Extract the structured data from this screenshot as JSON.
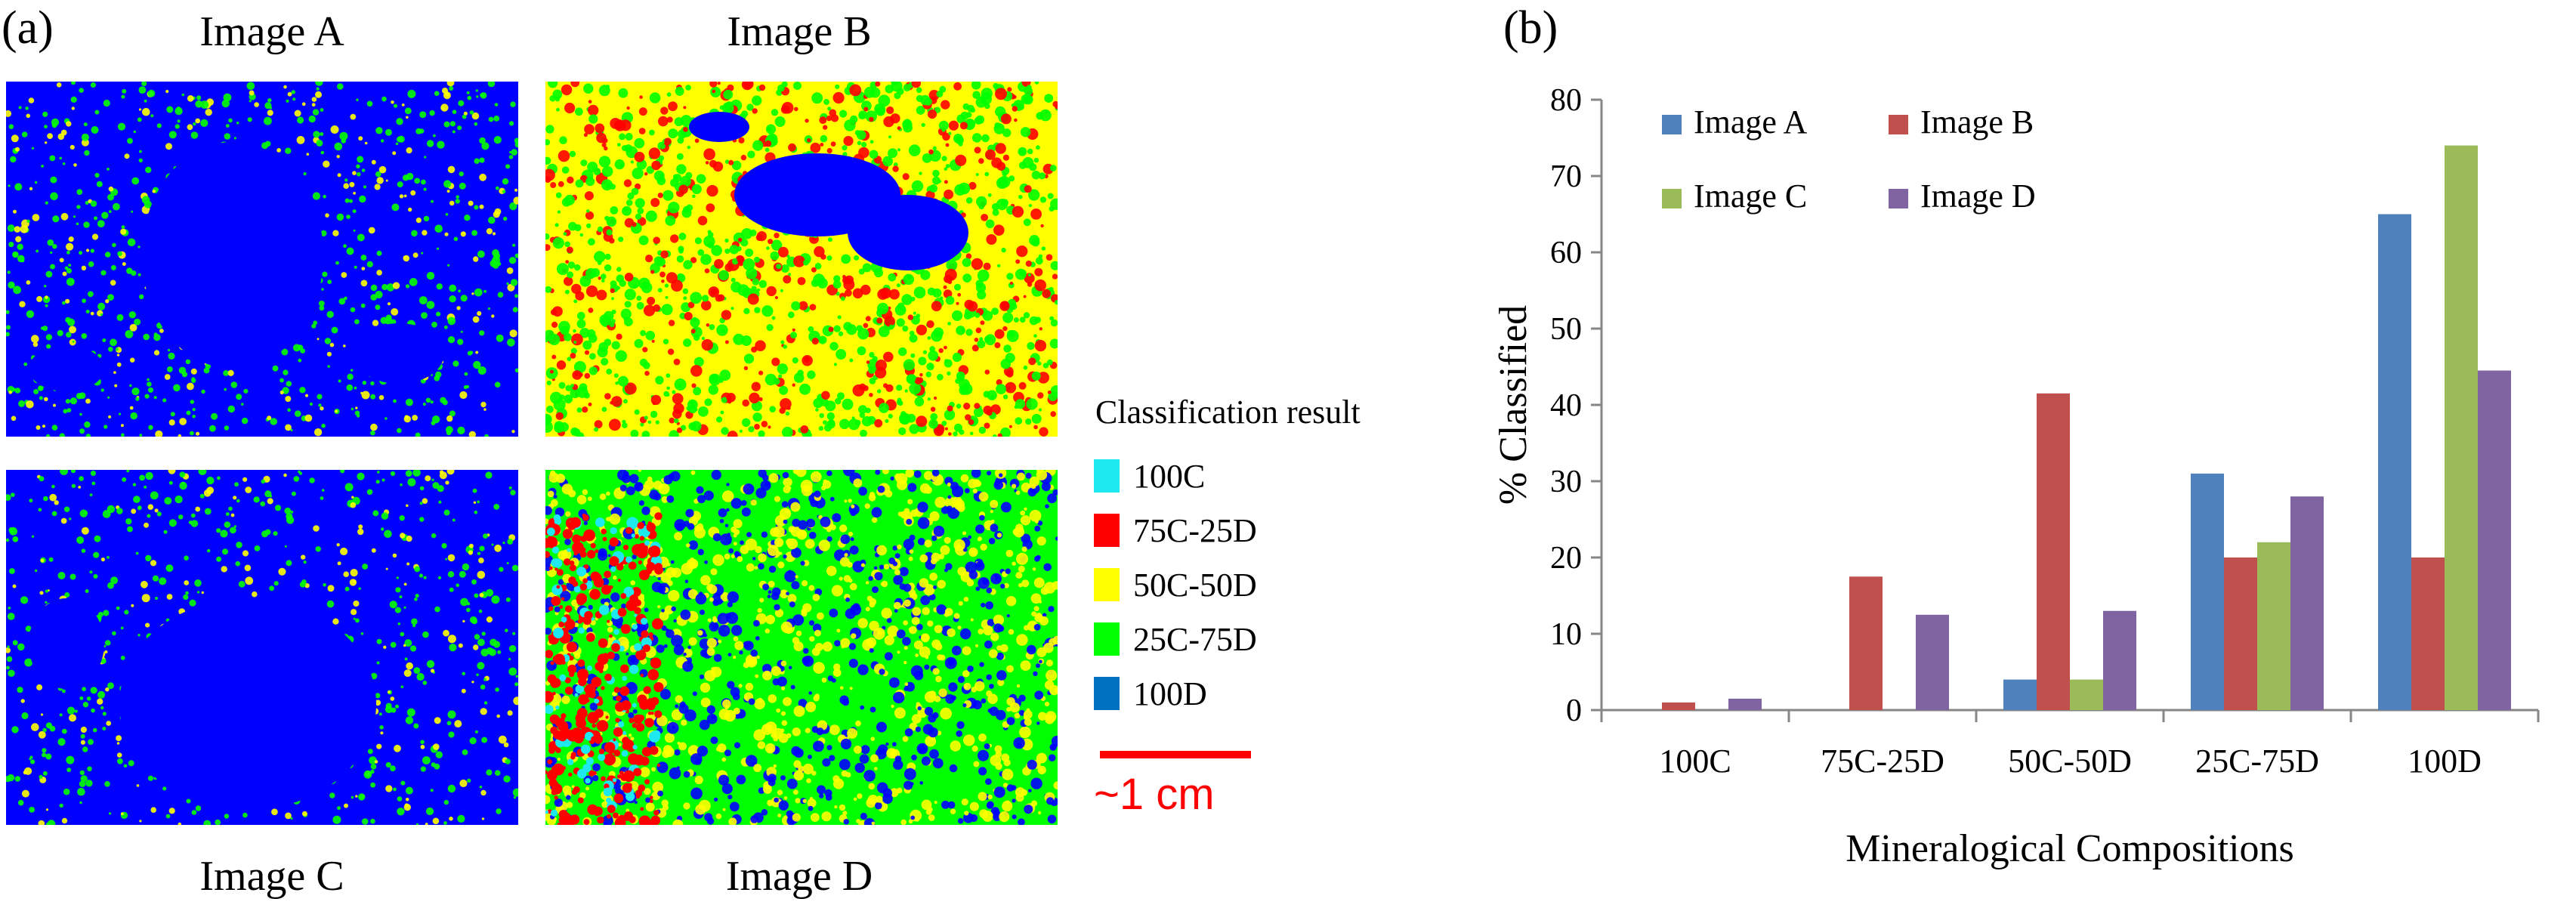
{
  "panel_a_label": "(a)",
  "panel_b_label": "(b)",
  "images": {
    "a": "Image A",
    "b": "Image B",
    "c": "Image C",
    "d": "Image D"
  },
  "classification_legend": {
    "title": "Classification result",
    "items": [
      {
        "label": "100C",
        "color": "#1ee8f0"
      },
      {
        "label": "75C-25D",
        "color": "#ff0000"
      },
      {
        "label": "50C-50D",
        "color": "#ffff00"
      },
      {
        "label": "25C-75D",
        "color": "#00ff00"
      },
      {
        "label": "100D",
        "color": "#0070c0"
      }
    ]
  },
  "scale_bar": {
    "label": "~1 cm",
    "color": "#ff0000"
  },
  "map_colors": {
    "blue": "#0000ff",
    "green": "#00ff00",
    "yellow": "#ffff00",
    "red": "#ff0000",
    "cyan": "#1ee8f0"
  },
  "chart_data": {
    "type": "bar",
    "title": "",
    "xlabel": "Mineralogical Compositions",
    "ylabel": "% Classified",
    "ylim": [
      0,
      80
    ],
    "yticks": [
      0,
      10,
      20,
      30,
      40,
      50,
      60,
      70,
      80
    ],
    "categories": [
      "100C",
      "75C-25D",
      "50C-50D",
      "25C-75D",
      "100D"
    ],
    "legend_position": "top-left",
    "series": [
      {
        "name": "Image A",
        "color": "#4f81bd",
        "values": [
          0,
          0,
          4,
          31,
          65
        ]
      },
      {
        "name": "Image B",
        "color": "#c0504d",
        "values": [
          1,
          17.5,
          41.5,
          20,
          20
        ]
      },
      {
        "name": "Image C",
        "color": "#9bbb59",
        "values": [
          0,
          0,
          4,
          22,
          74
        ]
      },
      {
        "name": "Image D",
        "color": "#8064a2",
        "values": [
          1.5,
          12.5,
          13,
          28,
          44.5
        ]
      }
    ]
  }
}
